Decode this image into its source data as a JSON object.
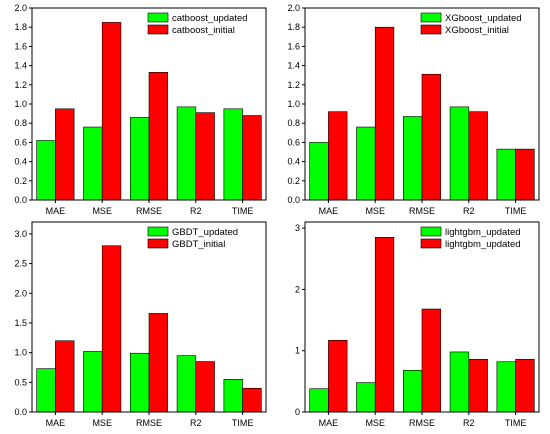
{
  "chart_data": [
    {
      "type": "bar",
      "categories": [
        "MAE",
        "MSE",
        "RMSE",
        "R2",
        "TIME"
      ],
      "series": [
        {
          "name": "catboost_updated",
          "color": "#00ff00",
          "values": [
            0.62,
            0.76,
            0.86,
            0.97,
            0.95
          ]
        },
        {
          "name": "catboost_initial",
          "color": "#ff0000",
          "values": [
            0.95,
            1.85,
            1.33,
            0.91,
            0.88
          ]
        }
      ],
      "ylim": [
        0,
        2.0
      ],
      "yticks": [
        "0.0",
        "0.2",
        "0.4",
        "0.6",
        "0.8",
        "1.0",
        "1.2",
        "1.4",
        "1.6",
        "1.8",
        "2.0"
      ],
      "ytick_values": [
        0,
        0.2,
        0.4,
        0.6,
        0.8,
        1.0,
        1.2,
        1.4,
        1.6,
        1.8,
        2.0
      ],
      "legend": "top-right"
    },
    {
      "type": "bar",
      "categories": [
        "MAE",
        "MSE",
        "RMSE",
        "R2",
        "TIME"
      ],
      "series": [
        {
          "name": "XGboost_updated",
          "color": "#00ff00",
          "values": [
            0.6,
            0.76,
            0.87,
            0.97,
            0.53
          ]
        },
        {
          "name": "XGboost_initial",
          "color": "#ff0000",
          "values": [
            0.92,
            1.8,
            1.31,
            0.92,
            0.53
          ]
        }
      ],
      "ylim": [
        0,
        2.0
      ],
      "yticks": [
        "0.0",
        "0.2",
        "0.4",
        "0.6",
        "0.8",
        "1.0",
        "1.2",
        "1.4",
        "1.6",
        "1.8",
        "2.0"
      ],
      "ytick_values": [
        0,
        0.2,
        0.4,
        0.6,
        0.8,
        1.0,
        1.2,
        1.4,
        1.6,
        1.8,
        2.0
      ],
      "legend": "top-right"
    },
    {
      "type": "bar",
      "categories": [
        "MAE",
        "MSE",
        "RMSE",
        "R2",
        "TIME"
      ],
      "series": [
        {
          "name": "GBDT_updated",
          "color": "#00ff00",
          "values": [
            0.73,
            1.02,
            0.99,
            0.95,
            0.55
          ]
        },
        {
          "name": "GBDT_initial",
          "color": "#ff0000",
          "values": [
            1.2,
            2.8,
            1.66,
            0.85,
            0.4
          ]
        }
      ],
      "ylim": [
        0,
        3.2
      ],
      "yticks": [
        "0.0",
        "0.5",
        "1.0",
        "1.5",
        "2.0",
        "2.5",
        "3.0"
      ],
      "ytick_values": [
        0,
        0.5,
        1.0,
        1.5,
        2.0,
        2.5,
        3.0
      ],
      "legend": "top-right"
    },
    {
      "type": "bar",
      "categories": [
        "MAE",
        "MSE",
        "RMSE",
        "R2",
        "TIME"
      ],
      "series": [
        {
          "name": "lightgbm_updated",
          "color": "#00ff00",
          "values": [
            0.38,
            0.48,
            0.68,
            0.98,
            0.82
          ]
        },
        {
          "name": "lightgbm_updated",
          "color": "#ff0000",
          "values": [
            1.17,
            2.85,
            1.68,
            0.86,
            0.86
          ]
        }
      ],
      "ylim": [
        0,
        3.1
      ],
      "yticks": [
        "0",
        "1",
        "2",
        "3"
      ],
      "ytick_values": [
        0,
        1,
        2,
        3
      ],
      "legend": "top-right"
    }
  ]
}
